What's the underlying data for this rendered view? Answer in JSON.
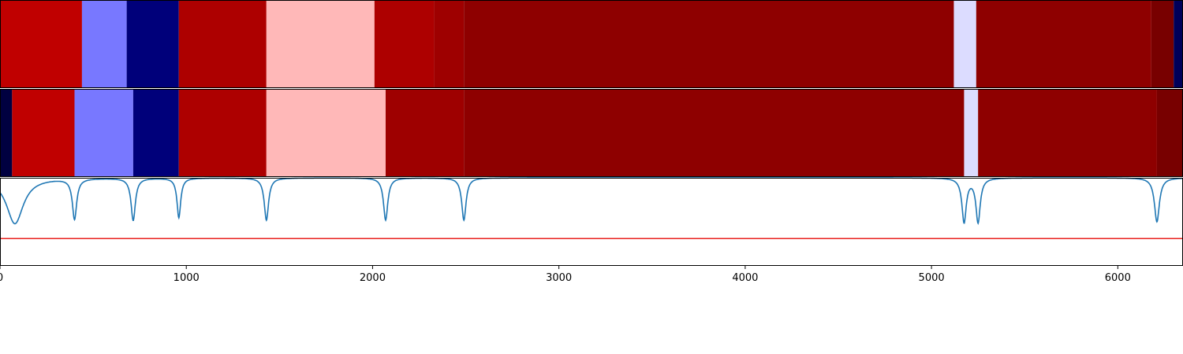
{
  "chart_data": {
    "type": "heatmap",
    "xlim": [
      0,
      6350
    ],
    "x_ticks": [
      0,
      1000,
      2000,
      3000,
      4000,
      5000,
      6000
    ],
    "x_tick_labels": [
      "0",
      "1000",
      "2000",
      "3000",
      "4000",
      "5000",
      "6000"
    ],
    "grid": false,
    "segment_rows": [
      {
        "segments": [
          {
            "start": 0,
            "end": 440,
            "color": "#c00000"
          },
          {
            "start": 440,
            "end": 680,
            "color": "#7878ff"
          },
          {
            "start": 680,
            "end": 960,
            "color": "#00007a"
          },
          {
            "start": 960,
            "end": 1430,
            "color": "#ad0000"
          },
          {
            "start": 1430,
            "end": 2010,
            "color": "#ffb8b8"
          },
          {
            "start": 2010,
            "end": 2330,
            "color": "#ad0000"
          },
          {
            "start": 2330,
            "end": 2490,
            "color": "#9e0000"
          },
          {
            "start": 2490,
            "end": 5120,
            "color": "#8e0000"
          },
          {
            "start": 5120,
            "end": 5240,
            "color": "#dcdcff"
          },
          {
            "start": 5240,
            "end": 6180,
            "color": "#8e0000"
          },
          {
            "start": 6180,
            "end": 6300,
            "color": "#780000"
          },
          {
            "start": 6300,
            "end": 6350,
            "color": "#00005a"
          }
        ]
      },
      {
        "segments": [
          {
            "start": 0,
            "end": 65,
            "color": "#000040"
          },
          {
            "start": 65,
            "end": 400,
            "color": "#c00000"
          },
          {
            "start": 400,
            "end": 715,
            "color": "#7878ff"
          },
          {
            "start": 715,
            "end": 960,
            "color": "#00007a"
          },
          {
            "start": 960,
            "end": 1430,
            "color": "#ad0000"
          },
          {
            "start": 1430,
            "end": 2070,
            "color": "#ffb8b8"
          },
          {
            "start": 2070,
            "end": 2490,
            "color": "#9e0000"
          },
          {
            "start": 2490,
            "end": 5175,
            "color": "#8e0000"
          },
          {
            "start": 5175,
            "end": 5250,
            "color": "#dcdcff"
          },
          {
            "start": 5250,
            "end": 6210,
            "color": "#8e0000"
          },
          {
            "start": 6210,
            "end": 6350,
            "color": "#780000"
          }
        ]
      }
    ],
    "signal": {
      "color": "#1f77b4",
      "baseline": 1.0,
      "ylim": [
        0.0,
        1.0
      ],
      "dips": [
        {
          "x": 80,
          "depth": 0.52,
          "width": 55
        },
        {
          "x": 400,
          "depth": 0.46,
          "width": 14
        },
        {
          "x": 715,
          "depth": 0.48,
          "width": 14
        },
        {
          "x": 960,
          "depth": 0.45,
          "width": 12
        },
        {
          "x": 1430,
          "depth": 0.48,
          "width": 14
        },
        {
          "x": 2070,
          "depth": 0.48,
          "width": 14
        },
        {
          "x": 2490,
          "depth": 0.48,
          "width": 14
        },
        {
          "x": 5175,
          "depth": 0.5,
          "width": 14
        },
        {
          "x": 5250,
          "depth": 0.5,
          "width": 14
        },
        {
          "x": 6210,
          "depth": 0.5,
          "width": 16
        }
      ],
      "threshold": 0.31,
      "threshold_color": "#e8221e"
    }
  }
}
